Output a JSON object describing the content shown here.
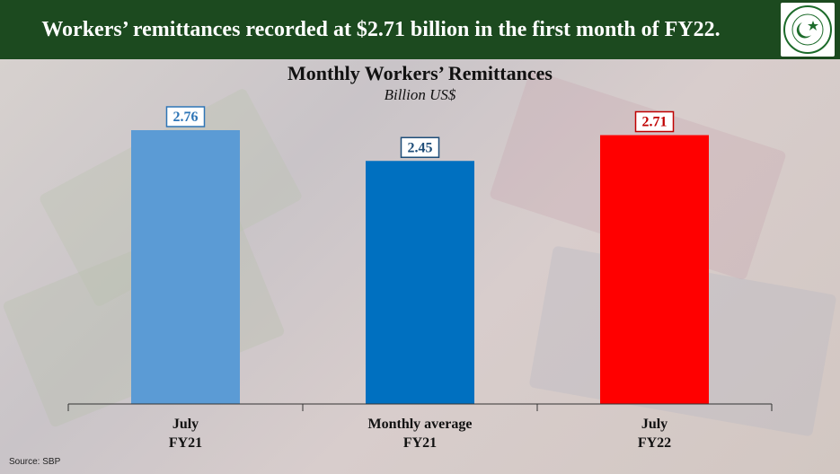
{
  "header": {
    "title": "Workers’ remittances recorded at $2.71 billion in the first month of FY22."
  },
  "logo": {
    "name": "state-bank-of-pakistan-logo",
    "text": "STATE BANK OF PAKISTAN"
  },
  "chart_data": {
    "type": "bar",
    "title": "Monthly Workers’ Remittances",
    "subtitle": "Billion US$",
    "categories": [
      [
        "July",
        "FY21"
      ],
      [
        "Monthly average",
        "FY21"
      ],
      [
        "July",
        "FY22"
      ]
    ],
    "values": [
      2.76,
      2.45,
      2.71
    ],
    "value_labels": [
      "2.76",
      "2.45",
      "2.71"
    ],
    "bar_colors": [
      "#5b9bd5",
      "#0070c0",
      "#ff0000"
    ],
    "label_colors": [
      "#2e75b6",
      "#1f4e79",
      "#c00000"
    ],
    "ylim": [
      0,
      2.76
    ],
    "grid": false,
    "legend": "none"
  },
  "source": "Source: SBP",
  "colors": {
    "header_bg": "#1c4a1f",
    "header_text": "#ffffff"
  }
}
